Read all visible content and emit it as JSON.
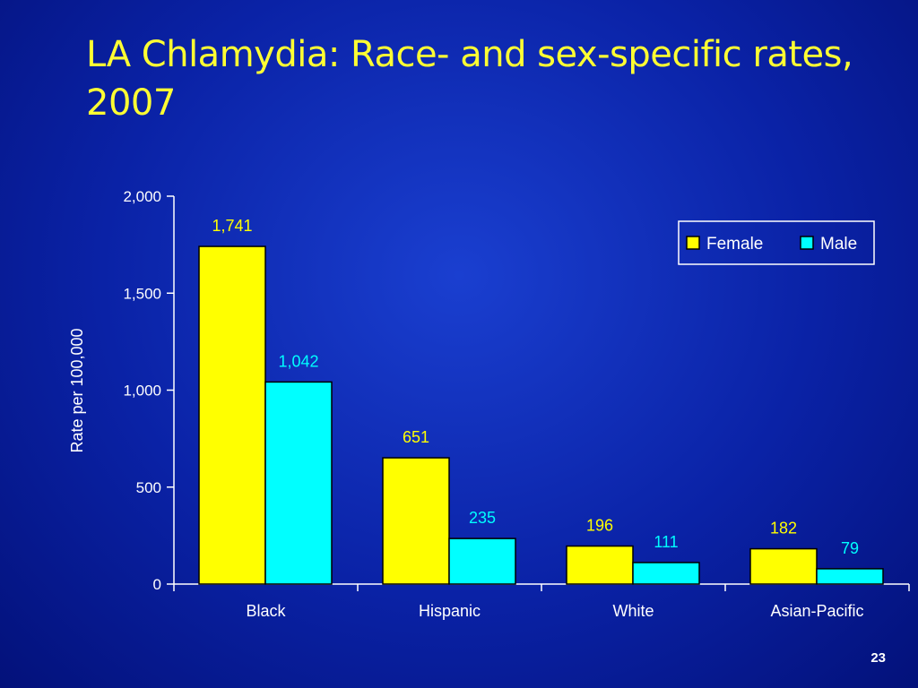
{
  "slide": {
    "title": "LA Chlamydia: Race- and sex-specific rates, 2007",
    "page_number": "23"
  },
  "colors": {
    "title": "#ffff33",
    "text": "#ffffff",
    "axis": "#ffffff",
    "female": "#ffff00",
    "male": "#00ffff",
    "female_label": "#ffff00",
    "male_label": "#00ffff",
    "bar_outline": "#000000"
  },
  "chart_data": {
    "type": "bar",
    "title": "LA Chlamydia: Race- and sex-specific rates, 2007",
    "xlabel": "",
    "ylabel": "Rate per 100,000",
    "categories": [
      "Black",
      "Hispanic",
      "White",
      "Asian-Pacific"
    ],
    "series": [
      {
        "name": "Female",
        "values": [
          1741,
          651,
          196,
          182
        ],
        "labels": [
          "1,741",
          "651",
          "196",
          "182"
        ]
      },
      {
        "name": "Male",
        "values": [
          1042,
          235,
          111,
          79
        ],
        "labels": [
          "1,042",
          "235",
          "111",
          "79"
        ]
      }
    ],
    "ylim": [
      0,
      2000
    ],
    "yticks": [
      0,
      500,
      1000,
      1500,
      2000
    ],
    "ytick_labels": [
      "0",
      "500",
      "1,000",
      "1,500",
      "2,000"
    ],
    "grid": false,
    "legend_position": "top-right"
  }
}
